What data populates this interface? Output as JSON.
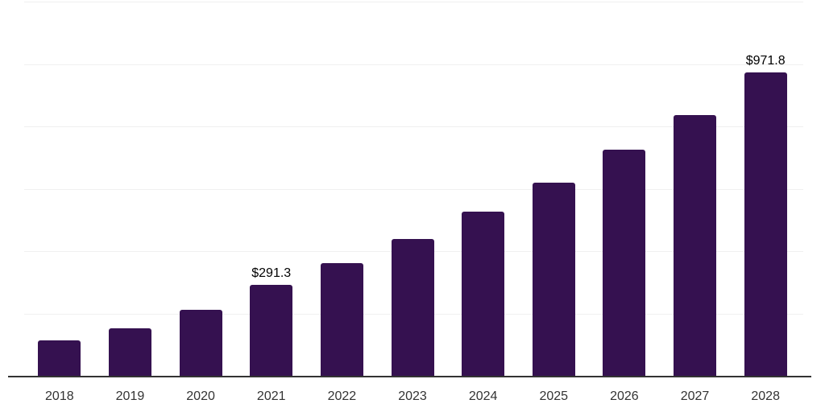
{
  "chart_data": {
    "type": "bar",
    "title": "",
    "xlabel": "",
    "ylabel": "",
    "legend": "none",
    "grid": "horizontal",
    "categories": [
      "2018",
      "2019",
      "2020",
      "2021",
      "2022",
      "2023",
      "2024",
      "2025",
      "2026",
      "2027",
      "2028"
    ],
    "values": [
      113.2,
      152.0,
      211.2,
      291.3,
      360.5,
      437.8,
      525.3,
      620.6,
      726.2,
      836.9,
      971.8
    ],
    "data_labels": {
      "2021": "$291.3",
      "2028": "$971.8"
    },
    "value_prefix": "$",
    "ylim": [
      0,
      1200
    ],
    "ytick_step": 200,
    "colors": {
      "bar": "#351150",
      "axis_line": "#333333",
      "gridline": "#f0f0f0",
      "tick_label": "#333333",
      "data_label": "#000000",
      "background": "#ffffff"
    }
  }
}
